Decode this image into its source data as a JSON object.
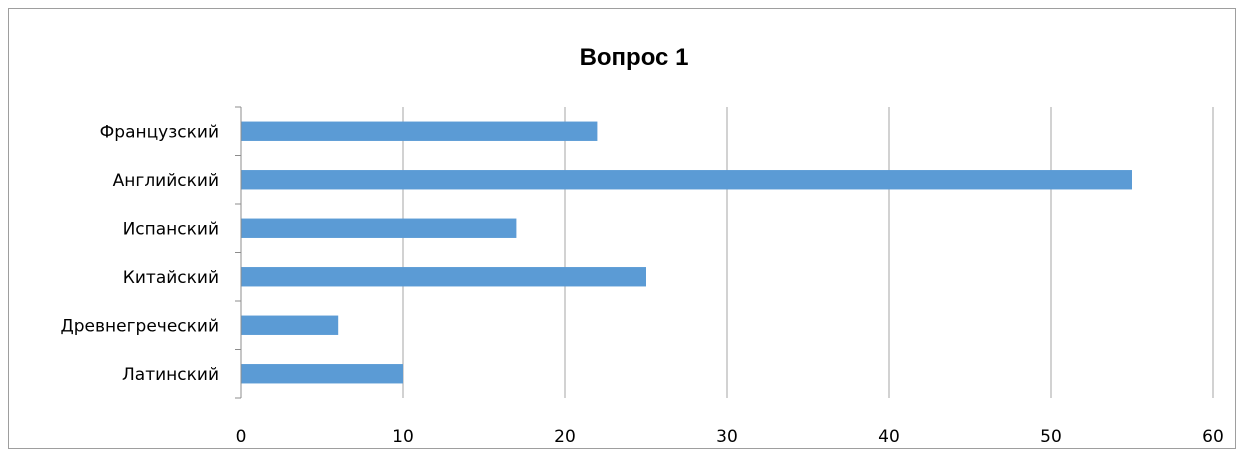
{
  "chart_data": {
    "type": "bar",
    "orientation": "horizontal",
    "title": "Вопрос 1",
    "categories": [
      "Французский",
      "Английский",
      "Испанский",
      "Китайский",
      "Древнегреческий",
      "Латинский"
    ],
    "values": [
      22,
      55,
      17,
      25,
      6,
      10
    ],
    "xlabel": "",
    "ylabel": "",
    "xlim": [
      0,
      60
    ],
    "xticks": [
      "0",
      "10",
      "20",
      "30",
      "40",
      "50",
      "60"
    ],
    "grid": "vertical",
    "legend": "none",
    "bar_color": "#5B9BD5"
  }
}
